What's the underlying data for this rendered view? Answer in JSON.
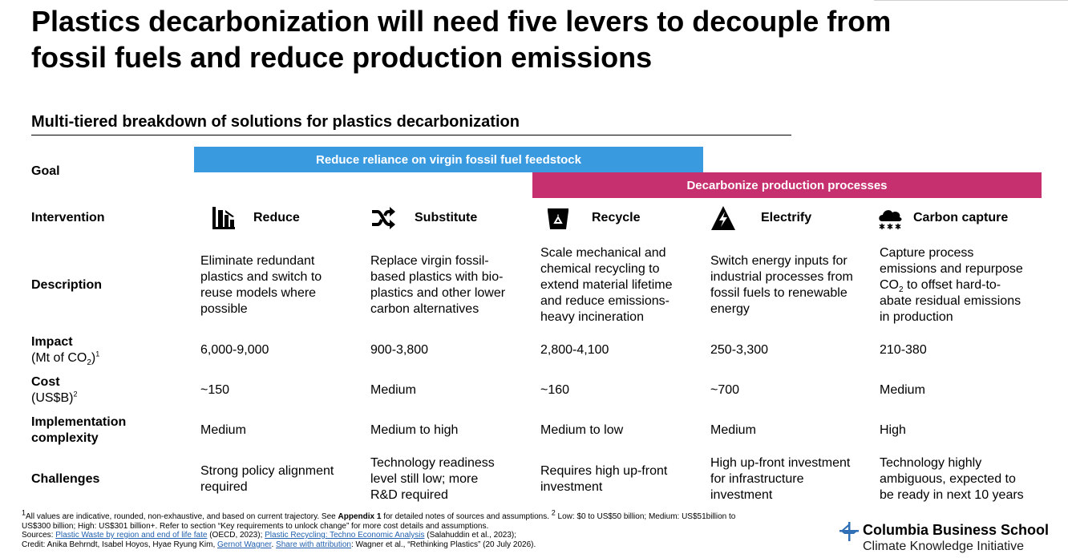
{
  "title": {
    "line1": "Plastics decarbonization will need five levers to decouple from",
    "line2": "fossil fuels and reduce production emissions"
  },
  "subtitle": "Multi-tiered breakdown of solutions for plastics decarbonization",
  "bands": {
    "band1": "Reduce reliance on virgin fossil fuel feedstock",
    "band2": "Decarbonize production processes"
  },
  "colors": {
    "band1": "#3a9ae0",
    "band2": "#c6306f",
    "link": "#1f5fae",
    "brand_icon": "#2f6fb5"
  },
  "rows": {
    "goal": "Goal",
    "intervention": "Intervention",
    "description": "Description",
    "impact": "Impact",
    "impact_unit_pre": "(Mt of CO",
    "impact_unit_sub": "2",
    "impact_unit_post": ")",
    "impact_sup": "1",
    "cost": "Cost",
    "cost_unit": "(US$B)",
    "cost_sup": "2",
    "complexity_l1": "Implementation",
    "complexity_l2": "complexity",
    "challenges": "Challenges"
  },
  "columns": [
    {
      "name": "Reduce",
      "icon": "building-reduce-icon",
      "desc": [
        "Eliminate redundant",
        "plastics and switch to",
        "reuse models where",
        "possible"
      ],
      "impact": "6,000-9,000",
      "cost": "~150",
      "complexity": "Medium",
      "challenges": [
        "Strong policy alignment",
        "required"
      ]
    },
    {
      "name": "Substitute",
      "icon": "shuffle-icon",
      "desc": [
        "Replace virgin fossil-",
        "based plastics with bio-",
        "plastics and other lower",
        "carbon alternatives"
      ],
      "impact": "900-3,800",
      "cost": "Medium",
      "complexity": "Medium to high",
      "challenges": [
        "Technology readiness",
        "level still low; more",
        "R&D required"
      ]
    },
    {
      "name": "Recycle",
      "icon": "recycle-bin-icon",
      "desc": [
        "Scale mechanical and",
        "chemical recycling to",
        "extend material lifetime",
        "and reduce emissions-",
        "heavy incineration"
      ],
      "impact": "2,800-4,100",
      "cost": "~160",
      "complexity": "Medium to low",
      "challenges": [
        "Requires high up-front",
        "investment"
      ]
    },
    {
      "name": "Electrify",
      "icon": "lightning-icon",
      "desc": [
        "Switch energy inputs for",
        "industrial processes from",
        "fossil fuels to renewable",
        "energy"
      ],
      "impact": "250-3,300",
      "cost": "~700",
      "complexity": "Medium",
      "challenges": [
        "High up-front investment",
        "for infrastructure",
        "investment"
      ]
    },
    {
      "name": "Carbon capture",
      "icon": "cloud-capture-icon",
      "desc_l1": "Capture process",
      "desc_l2": "emissions and repurpose",
      "desc_l3_pre": "CO",
      "desc_l3_sub": "2",
      "desc_l3_post": " to offset hard-to-",
      "desc_l4": "abate residual emissions",
      "desc_l5": "in production",
      "impact": "210-380",
      "cost": "Medium",
      "complexity": "High",
      "challenges": [
        "Technology highly",
        "ambiguous, expected to",
        "be ready in next 10 years"
      ]
    }
  ],
  "footnotes": {
    "sup1": "1",
    "l1a": "All values are indicative, rounded, non-exhaustive, and based on current trajectory. See ",
    "l1b": "Appendix 1",
    "l1c": " for detailed notes of sources and assumptions. ",
    "sup2": "2",
    "l1d": " Low: $0 to US$50 billion; Medium: US$51billion to",
    "l2": "US$300 billion; High: US$301 billion+. Refer to section “Key requirements to unlock change” for more cost details and assumptions.",
    "l3a": "Sources: ",
    "l3b": "Plastic Waste by region and end of life fate",
    "l3c": " (OECD, 2023); ",
    "l3d": "Plastic Recycling: Techno Economic Analysis",
    "l3e": " (Salahuddin et al., 2023);",
    "l4a": "Credit: Anika Behrndt, Isabel Hoyos, Hyae Ryung Kim, ",
    "l4b": "Gernot Wagner",
    "l4c": ". ",
    "l4d": "Share with attribution",
    "l4e": ": Wagner et al., “Rethinking Plastics” (20 July 2026)."
  },
  "brand": {
    "name": "Columbia Business School",
    "sub": "Climate Knowledge Initiative"
  }
}
